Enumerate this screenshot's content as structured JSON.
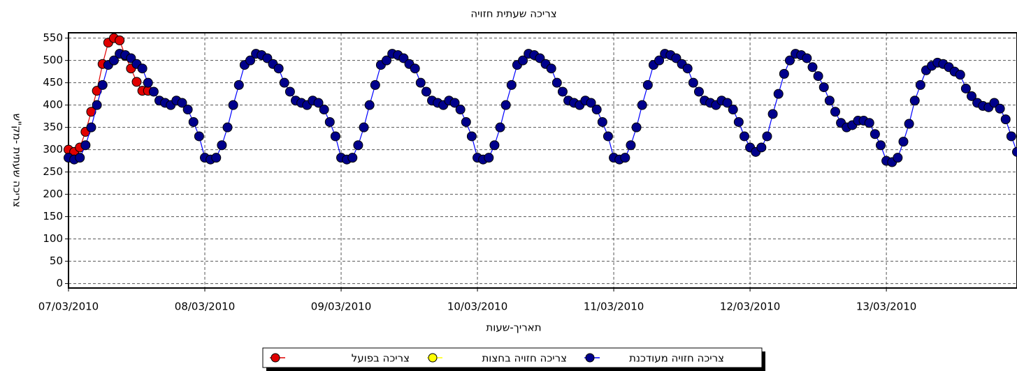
{
  "chart_data": {
    "type": "line",
    "title": "צריכה שעתית חזויה",
    "x_label": "תאריך-שעות",
    "y_label": "צריכה שעתית -מק\"ש",
    "xlim": [
      0,
      167
    ],
    "xticks": [
      {
        "value": 0,
        "label": "07/03/2010"
      },
      {
        "value": 24,
        "label": "08/03/2010"
      },
      {
        "value": 48,
        "label": "09/03/2010"
      },
      {
        "value": 72,
        "label": "10/03/2010"
      },
      {
        "value": 96,
        "label": "11/03/2010"
      },
      {
        "value": 120,
        "label": "12/03/2010"
      },
      {
        "value": 144,
        "label": "13/03/2010"
      }
    ],
    "ylim": [
      -10,
      562
    ],
    "yticks": [
      0,
      50,
      100,
      150,
      200,
      250,
      300,
      350,
      400,
      450,
      500,
      550
    ],
    "grid": true,
    "series": [
      {
        "name": "צריכה בפועל",
        "color": "#e00000",
        "line_color": "#e00000",
        "x": [
          0,
          1,
          2,
          3,
          4,
          5,
          6,
          7,
          8,
          9,
          10,
          11,
          12,
          13,
          14
        ],
        "values": [
          300,
          295,
          305,
          340,
          385,
          432,
          492,
          540,
          550,
          545,
          510,
          482,
          452,
          432,
          432
        ]
      },
      {
        "name": "צריכה חזויה בחצות",
        "color": "#ffff00",
        "line_color": "#ffff00",
        "x": [],
        "values": []
      },
      {
        "name": "צריכה חזויה מעודכנת",
        "color": "#00008b",
        "line_color": "#0000ff",
        "x": [
          0,
          1,
          2,
          3,
          4,
          5,
          6,
          7,
          8,
          9,
          10,
          11,
          12,
          13,
          14,
          15,
          16,
          17,
          18,
          19,
          20,
          21,
          22,
          23,
          24,
          25,
          26,
          27,
          28,
          29,
          30,
          31,
          32,
          33,
          34,
          35,
          36,
          37,
          38,
          39,
          40,
          41,
          42,
          43,
          44,
          45,
          46,
          47,
          48,
          49,
          50,
          51,
          52,
          53,
          54,
          55,
          56,
          57,
          58,
          59,
          60,
          61,
          62,
          63,
          64,
          65,
          66,
          67,
          68,
          69,
          70,
          71,
          72,
          73,
          74,
          75,
          76,
          77,
          78,
          79,
          80,
          81,
          82,
          83,
          84,
          85,
          86,
          87,
          88,
          89,
          90,
          91,
          92,
          93,
          94,
          95,
          96,
          97,
          98,
          99,
          100,
          101,
          102,
          103,
          104,
          105,
          106,
          107,
          108,
          109,
          110,
          111,
          112,
          113,
          114,
          115,
          116,
          117,
          118,
          119,
          120,
          121,
          122,
          123,
          124,
          125,
          126,
          127,
          128,
          129,
          130,
          131,
          132,
          133,
          134,
          135,
          136,
          137,
          138,
          139,
          140,
          141,
          142,
          143,
          144,
          145,
          146,
          147,
          148,
          149,
          150,
          151,
          152,
          153,
          154,
          155,
          156,
          157,
          158,
          159,
          160,
          161,
          162,
          163,
          164,
          165,
          166,
          167
        ],
        "values": [
          282,
          278,
          282,
          310,
          350,
          400,
          445,
          490,
          500,
          515,
          512,
          505,
          492,
          482,
          450,
          430,
          410,
          405,
          400,
          410,
          405,
          390,
          362,
          330,
          282,
          278,
          282,
          310,
          350,
          400,
          445,
          490,
          500,
          515,
          512,
          505,
          492,
          482,
          450,
          430,
          410,
          405,
          400,
          410,
          405,
          390,
          362,
          330,
          282,
          278,
          282,
          310,
          350,
          400,
          445,
          490,
          500,
          515,
          512,
          505,
          492,
          482,
          450,
          430,
          410,
          405,
          400,
          410,
          405,
          390,
          362,
          330,
          282,
          278,
          282,
          310,
          350,
          400,
          445,
          490,
          500,
          515,
          512,
          505,
          492,
          482,
          450,
          430,
          410,
          405,
          400,
          410,
          405,
          390,
          362,
          330,
          282,
          278,
          282,
          310,
          350,
          400,
          445,
          490,
          500,
          515,
          512,
          505,
          492,
          482,
          450,
          430,
          410,
          405,
          400,
          410,
          405,
          390,
          362,
          330,
          305,
          295,
          305,
          330,
          380,
          425,
          470,
          500,
          515,
          512,
          505,
          485,
          465,
          440,
          410,
          385,
          360,
          350,
          355,
          365,
          365,
          360,
          335,
          310,
          275,
          272,
          282,
          318,
          358,
          410,
          445,
          478,
          488,
          495,
          492,
          485,
          475,
          468,
          437,
          420,
          405,
          398,
          395,
          405,
          392,
          368,
          330,
          295
        ]
      }
    ]
  }
}
